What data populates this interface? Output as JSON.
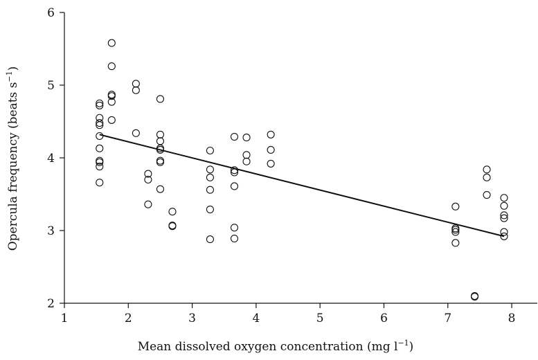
{
  "chart_data": {
    "type": "scatter",
    "xlabel": "Mean dissolved oxygen concentration (mg l",
    "xlabel_sup": "−1",
    "xlabel_close": ")",
    "ylabel": "Opercula frequency (beats s",
    "ylabel_sup": "−1",
    "ylabel_close": ")",
    "xlim": [
      1,
      8.4
    ],
    "ylim": [
      2,
      6
    ],
    "x_ticks": [
      "1",
      "2",
      "3",
      "4",
      "5",
      "6",
      "7",
      "8"
    ],
    "y_ticks": [
      "2",
      "3",
      "4",
      "5",
      "6"
    ],
    "grid": false,
    "legend": "none",
    "trendline": {
      "x": [
        1.55,
        7.88
      ],
      "y": [
        4.32,
        2.92
      ]
    },
    "points": [
      [
        1.55,
        4.75
      ],
      [
        1.55,
        4.72
      ],
      [
        1.55,
        4.55
      ],
      [
        1.55,
        4.48
      ],
      [
        1.55,
        4.45
      ],
      [
        1.55,
        4.3
      ],
      [
        1.55,
        4.13
      ],
      [
        1.55,
        3.96
      ],
      [
        1.55,
        3.94
      ],
      [
        1.55,
        3.88
      ],
      [
        1.55,
        3.66
      ],
      [
        1.74,
        5.58
      ],
      [
        1.74,
        5.26
      ],
      [
        1.74,
        4.87
      ],
      [
        1.74,
        4.85
      ],
      [
        1.74,
        4.77
      ],
      [
        1.74,
        4.52
      ],
      [
        2.12,
        5.02
      ],
      [
        2.12,
        4.93
      ],
      [
        2.12,
        4.34
      ],
      [
        2.31,
        3.78
      ],
      [
        2.31,
        3.7
      ],
      [
        2.31,
        3.36
      ],
      [
        2.5,
        4.81
      ],
      [
        2.5,
        4.32
      ],
      [
        2.5,
        4.23
      ],
      [
        2.5,
        4.13
      ],
      [
        2.5,
        4.11
      ],
      [
        2.5,
        3.96
      ],
      [
        2.5,
        3.94
      ],
      [
        2.5,
        3.57
      ],
      [
        2.69,
        3.26
      ],
      [
        2.69,
        3.07
      ],
      [
        2.69,
        3.06
      ],
      [
        3.28,
        4.1
      ],
      [
        3.28,
        3.84
      ],
      [
        3.28,
        3.73
      ],
      [
        3.28,
        3.56
      ],
      [
        3.28,
        3.29
      ],
      [
        3.28,
        2.88
      ],
      [
        3.66,
        4.29
      ],
      [
        3.66,
        3.83
      ],
      [
        3.66,
        3.8
      ],
      [
        3.66,
        3.61
      ],
      [
        3.66,
        3.04
      ],
      [
        3.66,
        2.89
      ],
      [
        3.85,
        4.28
      ],
      [
        3.85,
        4.04
      ],
      [
        3.85,
        3.95
      ],
      [
        4.23,
        4.32
      ],
      [
        4.23,
        4.11
      ],
      [
        4.23,
        3.92
      ],
      [
        7.12,
        3.33
      ],
      [
        7.12,
        3.03
      ],
      [
        7.12,
        3.01
      ],
      [
        7.12,
        2.98
      ],
      [
        7.12,
        2.83
      ],
      [
        7.42,
        2.1
      ],
      [
        7.42,
        2.09
      ],
      [
        7.61,
        3.84
      ],
      [
        7.61,
        3.73
      ],
      [
        7.61,
        3.49
      ],
      [
        7.88,
        3.45
      ],
      [
        7.88,
        3.34
      ],
      [
        7.88,
        3.21
      ],
      [
        7.88,
        3.17
      ],
      [
        7.88,
        2.98
      ],
      [
        7.88,
        2.92
      ]
    ]
  }
}
